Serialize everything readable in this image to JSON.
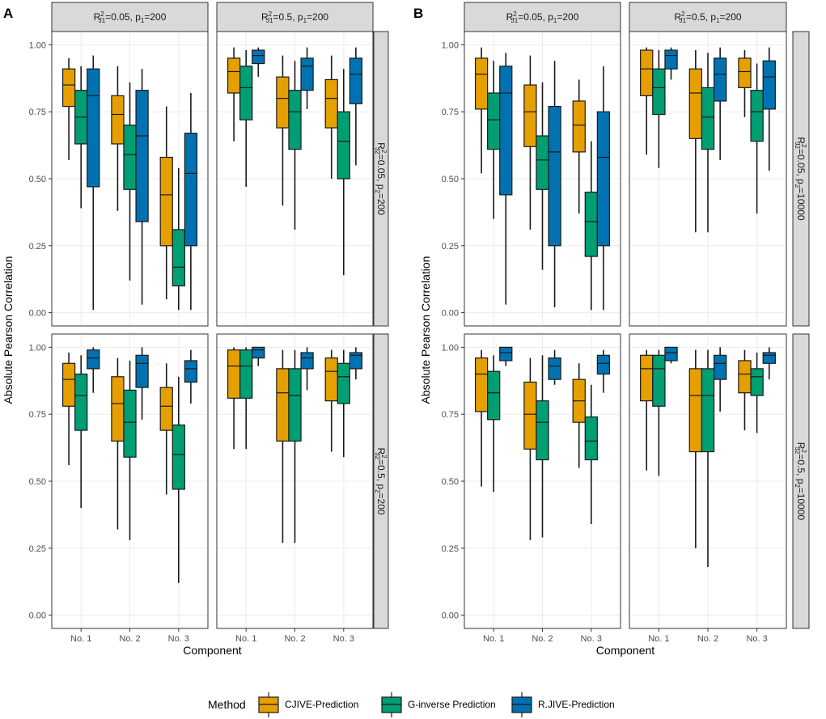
{
  "figure": {
    "panel_letters": [
      "A",
      "B"
    ],
    "legend_title": "Method",
    "x_axis_title": "Component",
    "y_axis_title": "Absolute Pearson Correlation"
  },
  "colors": {
    "CJIVE-Prediction": "#E69F00",
    "G-inverse Prediction": "#009E73",
    "R.JIVE-Prediction": "#0072B2",
    "strip_fill": "#D9D9D9",
    "grid": "#EBEBEB",
    "border": "#333333"
  },
  "chart_data": [
    {
      "type": "boxplot",
      "title": "A",
      "xlabel": "Component",
      "ylabel": "Absolute Pearson Correlation",
      "categories": [
        "No. 1",
        "No. 2",
        "No. 3"
      ],
      "methods": [
        "CJIVE-Prediction",
        "G-inverse Prediction",
        "R.JIVE-Prediction"
      ],
      "legend": "bottom",
      "col_facets": [
        {
          "main": "R",
          "sup": "2",
          "sub": "J1",
          "rest": "=0.05, p",
          "psub": "1",
          "tail": "=200"
        },
        {
          "main": "R",
          "sup": "2",
          "sub": "J1",
          "rest": "=0.5, p",
          "psub": "1",
          "tail": "=200"
        }
      ],
      "row_facets": [
        {
          "main": "R",
          "sup": "2",
          "sub": "J2",
          "rest": "=0.05, p",
          "psub": "2",
          "tail": "=200",
          "ylim": [
            0,
            1
          ],
          "yticks": [
            0.0,
            0.25,
            0.5,
            0.75,
            1.0
          ],
          "yticklabels": [
            "0.00",
            "0.25",
            "0.50",
            "0.75",
            "1.00"
          ]
        },
        {
          "main": "R",
          "sup": "2",
          "sub": "J2",
          "rest": "=0.5, p",
          "psub": "2",
          "tail": "=200",
          "ylim": [
            0,
            1
          ],
          "yticks": [
            0.0,
            0.25,
            0.5,
            0.75,
            1.0
          ],
          "yticklabels": [
            "0.00",
            "0.25",
            "0.50",
            "0.75",
            "1.00"
          ]
        }
      ],
      "boxes": [
        [
          [
            [
              [
                0.57,
                0.77,
                0.85,
                0.91,
                0.95
              ],
              [
                0.39,
                0.63,
                0.73,
                0.83,
                0.92
              ],
              [
                0.01,
                0.47,
                0.81,
                0.91,
                0.96
              ]
            ],
            [
              [
                0.38,
                0.63,
                0.74,
                0.81,
                0.92
              ],
              [
                0.12,
                0.46,
                0.59,
                0.7,
                0.86
              ],
              [
                0.03,
                0.34,
                0.66,
                0.83,
                0.91
              ]
            ],
            [
              [
                0.05,
                0.25,
                0.44,
                0.58,
                0.77
              ],
              [
                0.01,
                0.1,
                0.17,
                0.31,
                0.54
              ],
              [
                0.01,
                0.25,
                0.52,
                0.67,
                0.82
              ]
            ]
          ],
          [
            [
              [
                0.64,
                0.82,
                0.9,
                0.95,
                0.99
              ],
              [
                0.47,
                0.72,
                0.84,
                0.92,
                0.98
              ],
              [
                0.88,
                0.93,
                0.96,
                0.98,
                0.99
              ]
            ],
            [
              [
                0.4,
                0.69,
                0.8,
                0.88,
                0.96
              ],
              [
                0.31,
                0.61,
                0.75,
                0.83,
                0.94
              ],
              [
                0.76,
                0.83,
                0.92,
                0.95,
                0.99
              ]
            ],
            [
              [
                0.5,
                0.69,
                0.8,
                0.87,
                0.96
              ],
              [
                0.14,
                0.5,
                0.64,
                0.75,
                0.91
              ],
              [
                0.55,
                0.78,
                0.89,
                0.95,
                0.99
              ]
            ]
          ]
        ],
        [
          [
            [
              [
                0.56,
                0.78,
                0.88,
                0.94,
                0.98
              ],
              [
                0.4,
                0.69,
                0.82,
                0.9,
                0.97
              ],
              [
                0.83,
                0.92,
                0.96,
                0.99,
                1.0
              ]
            ],
            [
              [
                0.32,
                0.65,
                0.79,
                0.89,
                0.96
              ],
              [
                0.28,
                0.59,
                0.72,
                0.84,
                0.95
              ],
              [
                0.73,
                0.85,
                0.94,
                0.97,
                1.0
              ]
            ],
            [
              [
                0.45,
                0.69,
                0.78,
                0.85,
                0.94
              ],
              [
                0.12,
                0.47,
                0.6,
                0.71,
                0.89
              ],
              [
                0.79,
                0.87,
                0.92,
                0.95,
                0.99
              ]
            ]
          ],
          [
            [
              [
                0.62,
                0.81,
                0.93,
                0.99,
                1.0
              ],
              [
                0.62,
                0.81,
                0.93,
                0.99,
                1.0
              ],
              [
                0.93,
                0.96,
                0.99,
                1.0,
                1.0
              ]
            ],
            [
              [
                0.27,
                0.65,
                0.83,
                0.92,
                0.99
              ],
              [
                0.27,
                0.65,
                0.82,
                0.92,
                0.99
              ],
              [
                0.84,
                0.92,
                0.96,
                0.98,
                1.0
              ]
            ],
            [
              [
                0.61,
                0.8,
                0.91,
                0.96,
                0.99
              ],
              [
                0.59,
                0.79,
                0.89,
                0.94,
                0.99
              ],
              [
                0.88,
                0.92,
                0.97,
                0.98,
                1.0
              ]
            ]
          ]
        ]
      ]
    },
    {
      "type": "boxplot",
      "title": "B",
      "xlabel": "Component",
      "ylabel": "Absolute Pearson Correlation",
      "categories": [
        "No. 1",
        "No. 2",
        "No. 3"
      ],
      "methods": [
        "CJIVE-Prediction",
        "G-inverse Prediction",
        "R.JIVE-Prediction"
      ],
      "legend": "bottom",
      "col_facets": [
        {
          "main": "R",
          "sup": "2",
          "sub": "J1",
          "rest": "=0.05, p",
          "psub": "1",
          "tail": "=200"
        },
        {
          "main": "R",
          "sup": "2",
          "sub": "J1",
          "rest": "=0.5, p",
          "psub": "1",
          "tail": "=200"
        }
      ],
      "row_facets": [
        {
          "main": "R",
          "sup": "2",
          "sub": "J2",
          "rest": "=0.05, p",
          "psub": "2",
          "tail": "=10000",
          "ylim": [
            0,
            1
          ],
          "yticks": [
            0.0,
            0.25,
            0.5,
            0.75,
            1.0
          ],
          "yticklabels": [
            "0.00",
            "0.25",
            "0.50",
            "0.75",
            "1.00"
          ]
        },
        {
          "main": "R",
          "sup": "2",
          "sub": "J2",
          "rest": "=0.5, p",
          "psub": "2",
          "tail": "=10000",
          "ylim": [
            0,
            1
          ],
          "yticks": [
            0.0,
            0.25,
            0.5,
            0.75,
            1.0
          ],
          "yticklabels": [
            "0.00",
            "0.25",
            "0.50",
            "0.75",
            "1.00"
          ]
        }
      ],
      "boxes": [
        [
          [
            [
              [
                0.52,
                0.76,
                0.89,
                0.95,
                0.99
              ],
              [
                0.35,
                0.61,
                0.72,
                0.82,
                0.94
              ],
              [
                0.03,
                0.44,
                0.82,
                0.92,
                0.97
              ]
            ],
            [
              [
                0.31,
                0.62,
                0.75,
                0.85,
                0.96
              ],
              [
                0.16,
                0.46,
                0.57,
                0.66,
                0.86
              ],
              [
                0.02,
                0.25,
                0.6,
                0.77,
                0.94
              ]
            ],
            [
              [
                0.37,
                0.6,
                0.7,
                0.79,
                0.87
              ],
              [
                0.01,
                0.21,
                0.34,
                0.45,
                0.64
              ],
              [
                0.01,
                0.25,
                0.58,
                0.75,
                0.92
              ]
            ]
          ],
          [
            [
              [
                0.59,
                0.81,
                0.91,
                0.98,
                0.99
              ],
              [
                0.54,
                0.74,
                0.84,
                0.91,
                0.98
              ],
              [
                0.87,
                0.91,
                0.96,
                0.98,
                0.99
              ]
            ],
            [
              [
                0.3,
                0.65,
                0.82,
                0.91,
                0.98
              ],
              [
                0.3,
                0.61,
                0.73,
                0.84,
                0.97
              ],
              [
                0.57,
                0.79,
                0.89,
                0.95,
                0.99
              ]
            ],
            [
              [
                0.73,
                0.84,
                0.9,
                0.95,
                0.98
              ],
              [
                0.37,
                0.64,
                0.75,
                0.83,
                0.93
              ],
              [
                0.53,
                0.76,
                0.88,
                0.94,
                0.99
              ]
            ]
          ]
        ],
        [
          [
            [
              [
                0.48,
                0.76,
                0.9,
                0.96,
                0.99
              ],
              [
                0.46,
                0.73,
                0.83,
                0.91,
                0.97
              ],
              [
                0.93,
                0.95,
                0.98,
                1.0,
                1.0
              ]
            ],
            [
              [
                0.28,
                0.62,
                0.75,
                0.87,
                0.96
              ],
              [
                0.29,
                0.58,
                0.72,
                0.8,
                0.97
              ],
              [
                0.86,
                0.88,
                0.93,
                0.96,
                0.99
              ]
            ],
            [
              [
                0.55,
                0.72,
                0.8,
                0.88,
                0.94
              ],
              [
                0.34,
                0.58,
                0.65,
                0.74,
                0.86
              ],
              [
                0.83,
                0.9,
                0.94,
                0.97,
                0.99
              ]
            ]
          ],
          [
            [
              [
                0.54,
                0.8,
                0.92,
                0.97,
                0.99
              ],
              [
                0.52,
                0.78,
                0.92,
                0.97,
                0.99
              ],
              [
                0.94,
                0.95,
                0.98,
                1.0,
                1.0
              ]
            ],
            [
              [
                0.25,
                0.61,
                0.82,
                0.92,
                0.99
              ],
              [
                0.18,
                0.61,
                0.82,
                0.92,
                0.99
              ],
              [
                0.76,
                0.88,
                0.94,
                0.97,
                1.0
              ]
            ],
            [
              [
                0.69,
                0.83,
                0.9,
                0.95,
                0.99
              ],
              [
                0.68,
                0.82,
                0.89,
                0.92,
                0.98
              ],
              [
                0.88,
                0.94,
                0.97,
                0.98,
                1.0
              ]
            ]
          ]
        ]
      ]
    }
  ]
}
